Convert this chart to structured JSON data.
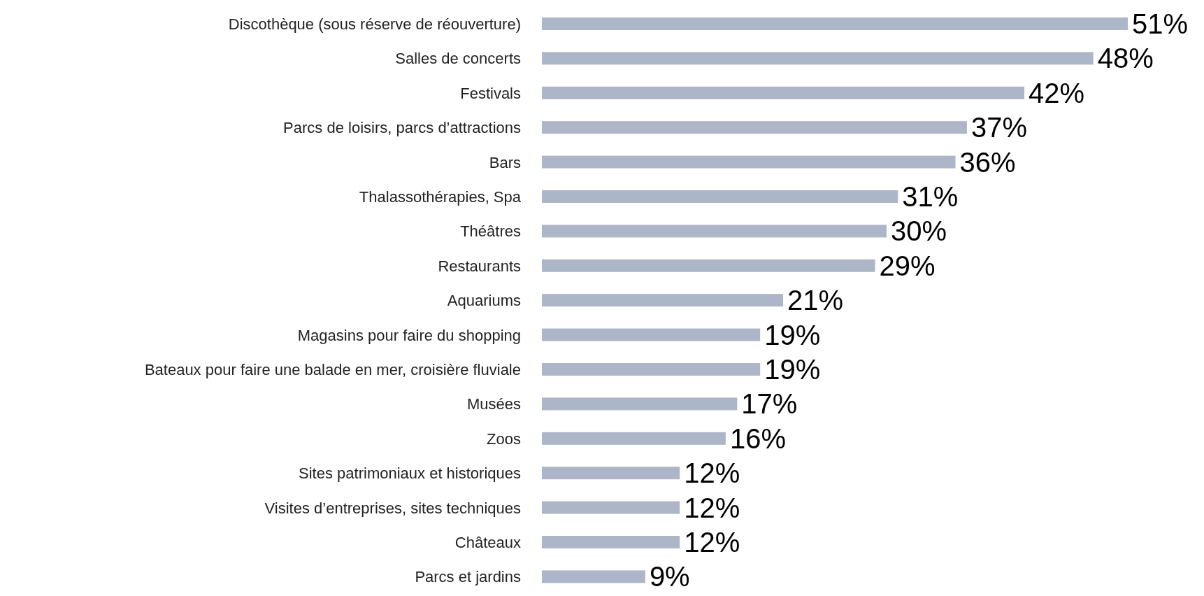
{
  "chart_data": {
    "type": "bar",
    "orientation": "horizontal",
    "categories": [
      "Discothèque (sous réserve de réouverture)",
      "Salles de concerts",
      "Festivals",
      "Parcs de loisirs, parcs d’attractions",
      "Bars",
      "Thalassothérapies, Spa",
      "Théâtres",
      "Restaurants",
      "Aquariums",
      "Magasins pour faire du shopping",
      "Bateaux pour faire une balade en mer, croisière fluviale",
      "Musées",
      "Zoos",
      "Sites patrimoniaux et historiques",
      "Visites d’entreprises, sites techniques",
      "Châteaux",
      "Parcs et jardins"
    ],
    "values": [
      51,
      48,
      42,
      37,
      36,
      31,
      30,
      29,
      21,
      19,
      19,
      17,
      16,
      12,
      12,
      12,
      9
    ],
    "value_labels": [
      "51%",
      "48%",
      "42%",
      "37%",
      "36%",
      "31%",
      "30%",
      "29%",
      "21%",
      "19%",
      "19%",
      "17%",
      "16%",
      "12%",
      "12%",
      "12%",
      "9%"
    ],
    "color": "#adb6c8"
  }
}
